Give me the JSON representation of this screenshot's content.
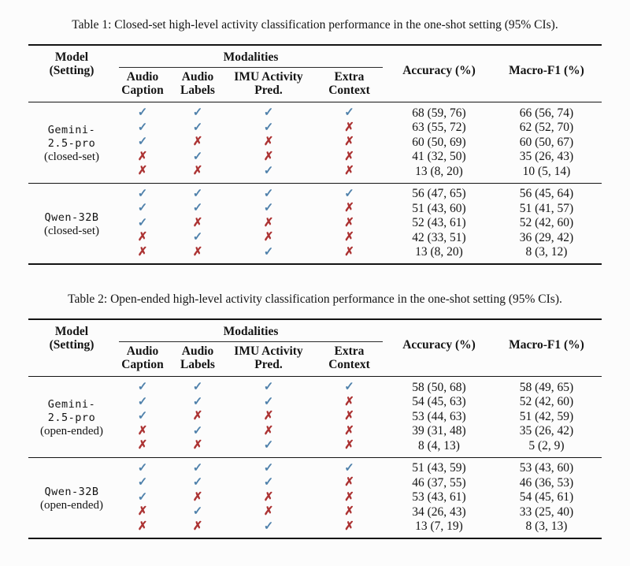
{
  "colors": {
    "check": "#4f81ab",
    "cross": "#ac3333",
    "text": "#141414",
    "rule": "#141414",
    "background": "#fcfcfc"
  },
  "icons": {
    "check_icon": "✓",
    "cross_icon": "✗"
  },
  "tables": [
    {
      "caption": "Table 1: Closed-set high-level activity classification performance in the one-shot setting (95% CIs).",
      "header": {
        "model_lines": [
          "Model",
          "(Setting)"
        ],
        "modalities_label": "Modalities",
        "subcolumns": [
          {
            "key": "audio-caption",
            "lines": [
              "Audio",
              "Caption"
            ]
          },
          {
            "key": "audio-labels",
            "lines": [
              "Audio",
              "Labels"
            ]
          },
          {
            "key": "imu-activity-pred",
            "lines": [
              "IMU Activity",
              "Pred."
            ]
          },
          {
            "key": "extra-context",
            "lines": [
              "Extra",
              "Context"
            ]
          }
        ],
        "accuracy_label": "Accuracy (%)",
        "macro_f1_label": "Macro-F1 (%)"
      },
      "groups": [
        {
          "model_lines": [
            "Gemini-",
            "2.5-pro"
          ],
          "setting_line": "(closed-set)",
          "rows": [
            {
              "marks": [
                true,
                true,
                true,
                true
              ],
              "accuracy": "68 (59, 76)",
              "macro_f1": "66 (56, 74)"
            },
            {
              "marks": [
                true,
                true,
                true,
                false
              ],
              "accuracy": "63 (55, 72)",
              "macro_f1": "62 (52, 70)"
            },
            {
              "marks": [
                true,
                false,
                false,
                false
              ],
              "accuracy": "60 (50, 69)",
              "macro_f1": "60 (50, 67)"
            },
            {
              "marks": [
                false,
                true,
                false,
                false
              ],
              "accuracy": "41 (32, 50)",
              "macro_f1": "35 (26, 43)"
            },
            {
              "marks": [
                false,
                false,
                true,
                false
              ],
              "accuracy": "13 (8, 20)",
              "macro_f1": "10 (5, 14)"
            }
          ]
        },
        {
          "model_lines": [
            "Qwen-32B"
          ],
          "setting_line": "(closed-set)",
          "rows": [
            {
              "marks": [
                true,
                true,
                true,
                true
              ],
              "accuracy": "56 (47, 65)",
              "macro_f1": "56 (45, 64)"
            },
            {
              "marks": [
                true,
                true,
                true,
                false
              ],
              "accuracy": "51 (43, 60)",
              "macro_f1": "51 (41, 57)"
            },
            {
              "marks": [
                true,
                false,
                false,
                false
              ],
              "accuracy": "52 (43, 61)",
              "macro_f1": "52 (42, 60)"
            },
            {
              "marks": [
                false,
                true,
                false,
                false
              ],
              "accuracy": "42 (33, 51)",
              "macro_f1": "36 (29, 42)"
            },
            {
              "marks": [
                false,
                false,
                true,
                false
              ],
              "accuracy": "13 (8, 20)",
              "macro_f1": "8 (3, 12)"
            }
          ]
        }
      ]
    },
    {
      "caption": "Table 2: Open-ended high-level activity classification performance in the one-shot setting (95% CIs).",
      "header": {
        "model_lines": [
          "Model",
          "(Setting)"
        ],
        "modalities_label": "Modalities",
        "subcolumns": [
          {
            "key": "audio-caption",
            "lines": [
              "Audio",
              "Caption"
            ]
          },
          {
            "key": "audio-labels",
            "lines": [
              "Audio",
              "Labels"
            ]
          },
          {
            "key": "imu-activity-pred",
            "lines": [
              "IMU Activity",
              "Pred."
            ]
          },
          {
            "key": "extra-context",
            "lines": [
              "Extra",
              "Context"
            ]
          }
        ],
        "accuracy_label": "Accuracy (%)",
        "macro_f1_label": "Macro-F1 (%)"
      },
      "groups": [
        {
          "model_lines": [
            "Gemini-",
            "2.5-pro"
          ],
          "setting_line": "(open-ended)",
          "rows": [
            {
              "marks": [
                true,
                true,
                true,
                true
              ],
              "accuracy": "58 (50, 68)",
              "macro_f1": "58 (49, 65)"
            },
            {
              "marks": [
                true,
                true,
                true,
                false
              ],
              "accuracy": "54 (45, 63)",
              "macro_f1": "52 (42, 60)"
            },
            {
              "marks": [
                true,
                false,
                false,
                false
              ],
              "accuracy": "53 (44, 63)",
              "macro_f1": "51 (42, 59)"
            },
            {
              "marks": [
                false,
                true,
                false,
                false
              ],
              "accuracy": "39 (31, 48)",
              "macro_f1": "35 (26, 42)"
            },
            {
              "marks": [
                false,
                false,
                true,
                false
              ],
              "accuracy": "8 (4, 13)",
              "macro_f1": "5 (2, 9)"
            }
          ]
        },
        {
          "model_lines": [
            "Qwen-32B"
          ],
          "setting_line": "(open-ended)",
          "rows": [
            {
              "marks": [
                true,
                true,
                true,
                true
              ],
              "accuracy": "51 (43, 59)",
              "macro_f1": "53 (43, 60)"
            },
            {
              "marks": [
                true,
                true,
                true,
                false
              ],
              "accuracy": "46 (37, 55)",
              "macro_f1": "46 (36, 53)"
            },
            {
              "marks": [
                true,
                false,
                false,
                false
              ],
              "accuracy": "53 (43, 61)",
              "macro_f1": "54 (45, 61)"
            },
            {
              "marks": [
                false,
                true,
                false,
                false
              ],
              "accuracy": "34 (26, 43)",
              "macro_f1": "33 (25, 40)"
            },
            {
              "marks": [
                false,
                false,
                true,
                false
              ],
              "accuracy": "13 (7, 19)",
              "macro_f1": "8 (3, 13)"
            }
          ]
        }
      ]
    }
  ]
}
